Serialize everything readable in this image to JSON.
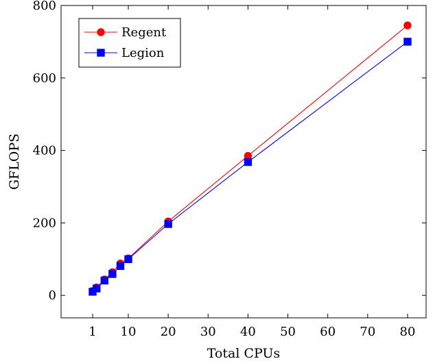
{
  "chart_data": {
    "type": "line",
    "title": "",
    "xlabel": "Total CPUs",
    "ylabel": "GFLOPS",
    "x_tick_labels": [
      "1",
      "10",
      "20",
      "30",
      "40",
      "50",
      "60",
      "70",
      "80"
    ],
    "y_ticks": [
      0,
      200,
      400,
      600,
      800
    ],
    "y_tick_labels": [
      "0",
      "200",
      "400",
      "600",
      "800"
    ],
    "ylim": [
      -62,
      800
    ],
    "x_scale": "piecewise (1–10 compressed, then linear)",
    "grid": false,
    "legend_position": "top-left",
    "series": [
      {
        "name": "Regent",
        "color": "#ff0000",
        "marker": "circle",
        "x": [
          1,
          2,
          4,
          6,
          8,
          10,
          20,
          40,
          80
        ],
        "y": [
          12,
          22,
          44,
          64,
          88,
          102,
          204,
          385,
          745
        ]
      },
      {
        "name": "Legion",
        "color": "#0000ff",
        "marker": "square",
        "x": [
          1,
          2,
          4,
          6,
          8,
          10,
          20,
          40,
          80
        ],
        "y": [
          10,
          19,
          41,
          59,
          81,
          100,
          197,
          368,
          700
        ]
      }
    ]
  }
}
